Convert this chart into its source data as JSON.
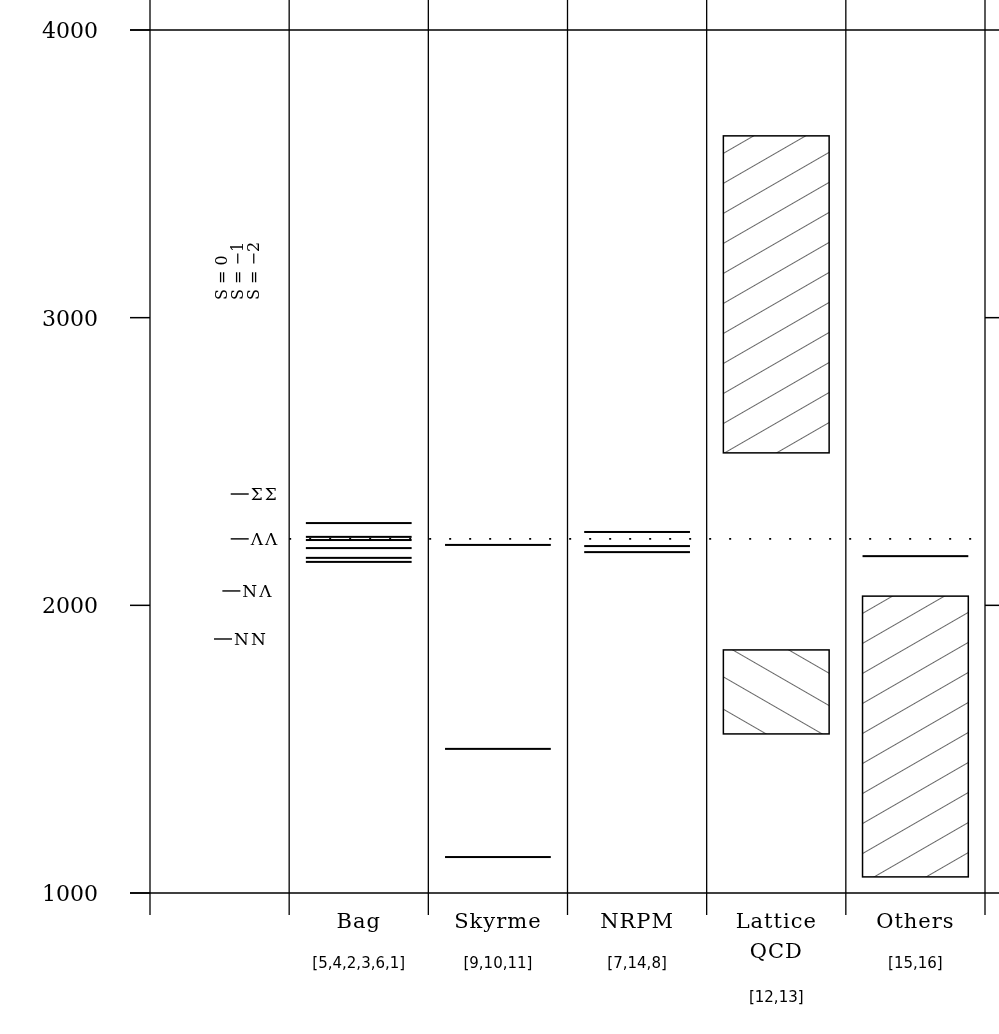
{
  "chart_data": {
    "type": "bar",
    "categories": [
      null,
      "Bag",
      "Skyrme",
      "NRPM",
      "Lattice QCD",
      "Others"
    ],
    "ylim": [
      1000,
      4000
    ],
    "yticks": [
      1000,
      2000,
      3000,
      4000
    ],
    "series": [
      {
        "color": "#000000",
        "base": [
          null,
          null,
          null,
          null,
          2530,
          1056
        ],
        "values": [
          null,
          null,
          null,
          null,
          1102,
          976
        ]
      },
      {
        "color": "#000000",
        "base": [
          null,
          null,
          null,
          null,
          1553,
          null
        ],
        "values": [
          null,
          null,
          null,
          null,
          292,
          null
        ]
      },
      {
        "color": "#000000",
        "base": [
          null,
          2286,
          2210,
          2255,
          null,
          2171
        ],
        "values": [
          null,
          0,
          0,
          0,
          null,
          0
        ]
      },
      {
        "color": "#000000",
        "base": [
          null,
          2238,
          1501,
          2206,
          null,
          null
        ],
        "values": [
          null,
          0,
          0,
          0,
          null,
          null
        ]
      },
      {
        "color": "#000000",
        "base": [
          null,
          2227,
          1125,
          2185,
          null,
          null
        ],
        "values": [
          null,
          0,
          0,
          0,
          null,
          null
        ]
      },
      {
        "color": "#000000",
        "base": [
          null,
          2199,
          null,
          null,
          null,
          null
        ],
        "values": [
          null,
          0,
          null,
          null,
          null,
          null
        ]
      },
      {
        "color": "#000000",
        "base": [
          null,
          2165,
          null,
          null,
          null,
          null
        ],
        "values": [
          null,
          0,
          null,
          null,
          null,
          null
        ]
      },
      {
        "color": "#000000",
        "base": [
          null,
          2151,
          null,
          null,
          null,
          null
        ],
        "values": [
          null,
          0,
          null,
          null,
          null,
          null
        ]
      }
    ],
    "ref_lines": [
      {
        "axis": "y",
        "value": 1883,
        "label": "NN"
      },
      {
        "axis": "y",
        "value": 2050,
        "label": "NΛ"
      },
      {
        "axis": "y",
        "value": 2231,
        "label": "ΛΛ",
        "line_style": "dotted"
      },
      {
        "axis": "y",
        "value": 2387,
        "label": "ΣΣ"
      }
    ],
    "annotations": [
      "S = 0",
      "S = −1",
      "S = −2",
      "[5,4,2,3,6,1]",
      "[9,10,11]",
      "[7,14,8]",
      "[12,13]",
      "[15,16]"
    ]
  }
}
